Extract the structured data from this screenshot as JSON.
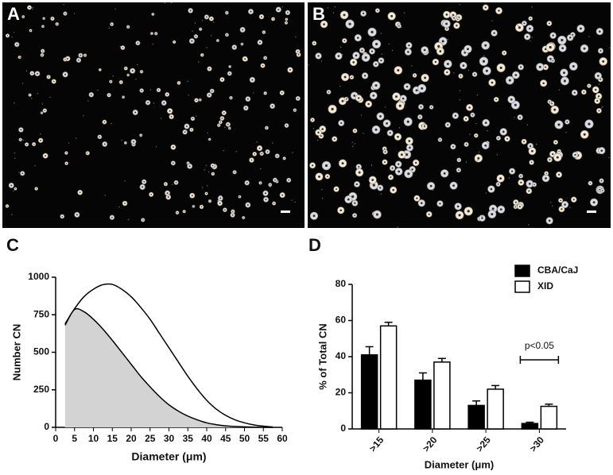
{
  "images": [
    {
      "panel": "A"
    },
    {
      "panel": "B"
    }
  ],
  "chart_data": [
    {
      "type": "area",
      "panel": "C",
      "x_label": "Diameter (μm)",
      "y_label": "Number CN",
      "x": [
        2.5,
        5,
        7.5,
        10,
        12.5,
        15,
        17.5,
        20,
        22.5,
        25,
        27.5,
        30,
        32.5,
        35,
        37.5,
        40,
        42.5,
        45,
        47.5,
        50,
        52.5,
        55,
        57.5
      ],
      "series": [
        {
          "color": "#ffffff",
          "values": [
            690,
            790,
            870,
            920,
            950,
            952,
            920,
            870,
            800,
            720,
            625,
            530,
            435,
            340,
            255,
            180,
            122,
            80,
            50,
            30,
            16,
            8,
            2
          ]
        },
        {
          "color": "#d3d3d3",
          "values": [
            680,
            785,
            770,
            720,
            655,
            580,
            500,
            420,
            340,
            270,
            205,
            150,
            108,
            75,
            50,
            30,
            18,
            10,
            6,
            3,
            1,
            0,
            0
          ]
        }
      ],
      "xlim": [
        0,
        60
      ],
      "xticks": [
        0,
        5,
        10,
        15,
        20,
        25,
        30,
        35,
        40,
        45,
        50,
        55,
        60
      ],
      "ylim": [
        0,
        1000
      ],
      "yticks": [
        0,
        250,
        500,
        750,
        1000
      ]
    },
    {
      "type": "bar",
      "panel": "D",
      "x_label": "Diameter (μm)",
      "y_label": "% of Total CN",
      "categories": [
        ">15",
        ">20",
        ">25",
        ">30"
      ],
      "series": [
        {
          "name": "CBA/CaJ",
          "color": "#000000",
          "values": [
            41,
            27,
            13,
            3
          ],
          "errors": [
            4.5,
            4,
            2.5,
            0.7
          ]
        },
        {
          "name": "XID",
          "color": "#ffffff",
          "values": [
            57,
            37,
            22,
            12.5
          ],
          "errors": [
            2,
            2,
            2,
            1.2
          ]
        }
      ],
      "annotation": "p<0.05",
      "ylim": [
        0,
        80
      ],
      "yticks": [
        0,
        20,
        40,
        60,
        80
      ],
      "legend": "top-right"
    }
  ]
}
